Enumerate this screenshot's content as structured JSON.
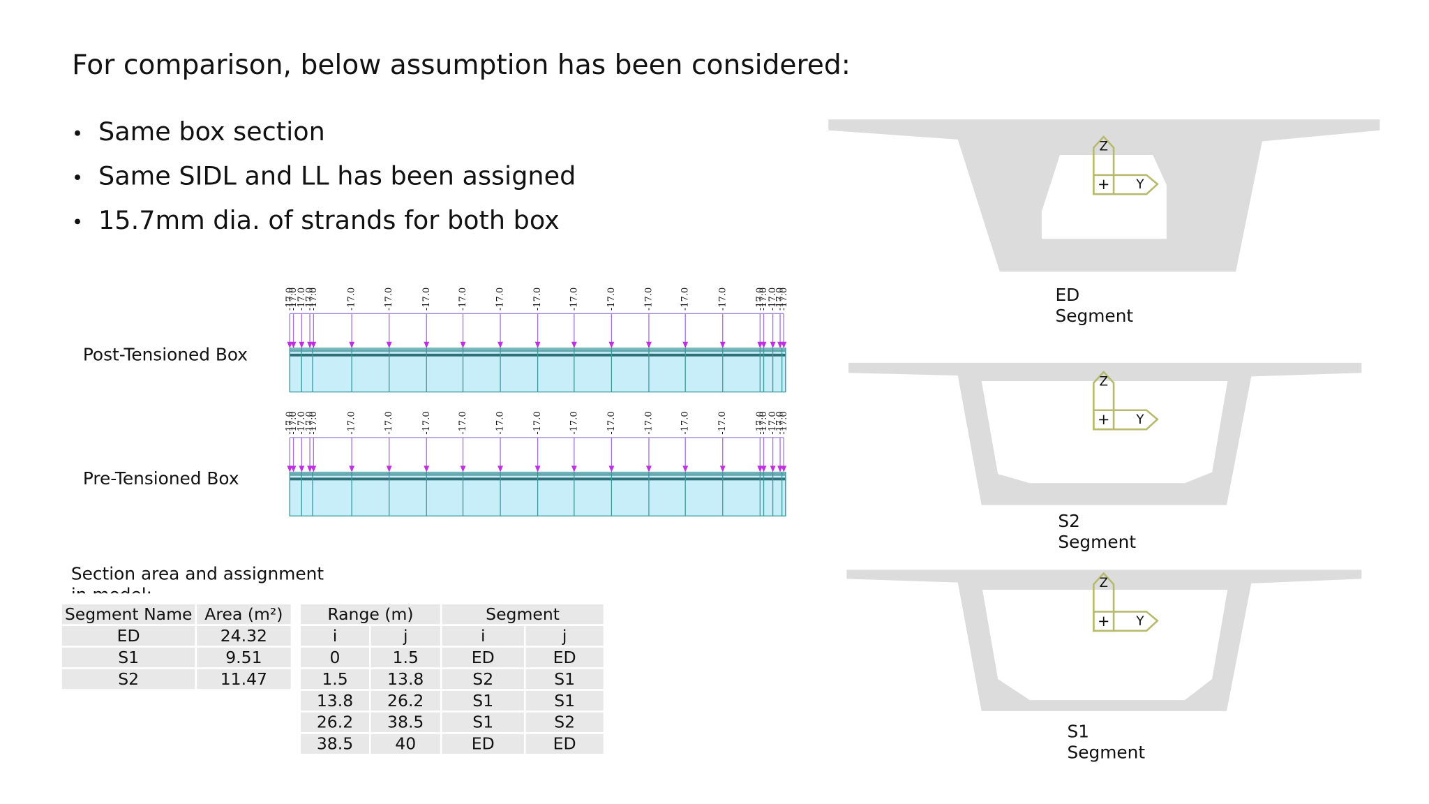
{
  "title": "For comparison, below assumption has been considered:",
  "bullets": [
    "Same box section",
    "Same SIDL and LL has been assigned",
    "15.7mm dia. of strands for both box"
  ],
  "beams": [
    {
      "label": "Post-Tensioned Box",
      "loads": [
        "-17.0",
        "-17.0",
        "-17.0",
        "-17.0",
        "-17.0",
        "-17.0",
        "-17.0",
        "-17.0",
        "-17.0",
        "-17.0",
        "-17.0",
        "-17.0",
        "-17.0",
        "-17.0",
        "-17.0",
        "-17.0",
        "-17.0",
        "-17.0",
        "-17.0",
        "-17.0",
        "-17.0"
      ]
    },
    {
      "label": "Pre-Tensioned Box",
      "loads": [
        "-17.0",
        "-17.0",
        "-17.0",
        "-17.0",
        "-17.0",
        "-17.0",
        "-17.0",
        "-17.0",
        "-17.0",
        "-17.0",
        "-17.0",
        "-17.0",
        "-17.0",
        "-17.0",
        "-17.0",
        "-17.0",
        "-17.0",
        "-17.0",
        "-17.0",
        "-17.0",
        "-17.0"
      ]
    }
  ],
  "sections": [
    {
      "caption": "ED Segment",
      "z": "Z",
      "y": "Y"
    },
    {
      "caption": "S2 Segment",
      "z": "Z",
      "y": "Y"
    },
    {
      "caption": "S1 Segment",
      "z": "Z",
      "y": "Y"
    }
  ],
  "table_note": "Section area and assignment in model:",
  "area_table": {
    "header": [
      "Segment Name",
      "Area (m²)"
    ],
    "rows": [
      [
        "ED",
        24.32
      ],
      [
        "S1",
        9.51
      ],
      [
        "S2",
        11.47
      ]
    ]
  },
  "range_table": {
    "header": [
      "Range (m)",
      "Segment"
    ],
    "subheader": [
      "i",
      "j",
      "i",
      "j"
    ],
    "rows": [
      [
        0,
        1.5,
        "ED",
        "ED"
      ],
      [
        1.5,
        13.8,
        "S2",
        "S1"
      ],
      [
        13.8,
        26.2,
        "S1",
        "S1"
      ],
      [
        26.2,
        38.5,
        "S1",
        "S2"
      ],
      [
        38.5,
        40,
        "ED",
        "ED"
      ]
    ]
  }
}
